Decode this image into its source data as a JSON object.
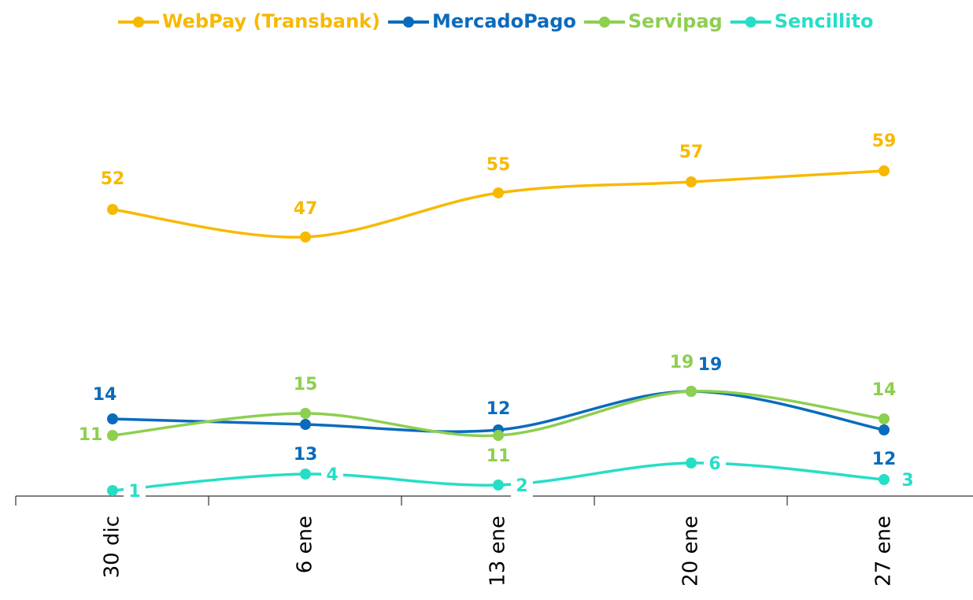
{
  "chart_data": {
    "type": "line",
    "categories": [
      "30 dic",
      "6 ene",
      "13 ene",
      "20 ene",
      "27 ene"
    ],
    "series": [
      {
        "name": "WebPay (Transbank)",
        "color": "#f7b900",
        "values": [
          52,
          47,
          55,
          57,
          59
        ]
      },
      {
        "name": "MercadoPago",
        "color": "#0a6bbd",
        "values": [
          14,
          13,
          12,
          19,
          12
        ]
      },
      {
        "name": "Servipag",
        "color": "#8dcf4f",
        "values": [
          11,
          15,
          11,
          19,
          14
        ]
      },
      {
        "name": "Sencillito",
        "color": "#26dec6",
        "values": [
          1,
          4,
          2,
          6,
          3
        ]
      }
    ],
    "ylim": [
      0,
      85
    ],
    "legend": "top",
    "grid": false
  }
}
